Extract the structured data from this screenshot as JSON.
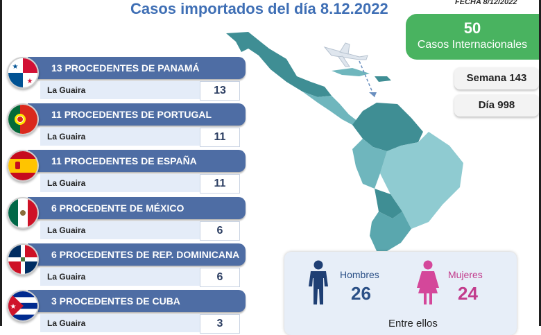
{
  "header": {
    "title": "Casos importados del día 8.12.2022",
    "fecha": "FECHA 8/12/2022"
  },
  "summary": {
    "international_count": "50",
    "international_label": "Casos Internacionales",
    "semana": "Semana 143",
    "dia": "Día 998"
  },
  "origins": [
    {
      "label": "13 PROCEDENTES DE PANAMÁ",
      "location": "La Guaira",
      "count": "13",
      "flag": "panama-flag-icon"
    },
    {
      "label": "11 PROCEDENTES DE PORTUGAL",
      "location": "La Guaira",
      "count": "11",
      "flag": "portugal-flag-icon"
    },
    {
      "label": "11 PROCEDENTES DE ESPAÑA",
      "location": "La Guaira",
      "count": "11",
      "flag": "spain-flag-icon"
    },
    {
      "label": "6 PROCEDENTE DE MÉXICO",
      "location": "La Guaira",
      "count": "6",
      "flag": "mexico-flag-icon"
    },
    {
      "label": "6 PROCEDENTES DE REP. DOMINICANA",
      "location": "La Guaira",
      "count": "6",
      "flag": "dominican-republic-flag-icon"
    },
    {
      "label": "3 PROCEDENTES DE CUBA",
      "location": "La Guaira",
      "count": "3",
      "flag": "cuba-flag-icon"
    }
  ],
  "gender": {
    "men_label": "Hombres",
    "men_count": "26",
    "women_label": "Mujeres",
    "women_count": "24",
    "footer": "Entre ellos"
  },
  "colors": {
    "title": "#3f6fb5",
    "bar": "#4e6da4",
    "international": "#49b360",
    "men": "#1f3f74",
    "women": "#d4479a",
    "map_dark": "#3f8e94",
    "map_light": "#8fcbd1"
  }
}
